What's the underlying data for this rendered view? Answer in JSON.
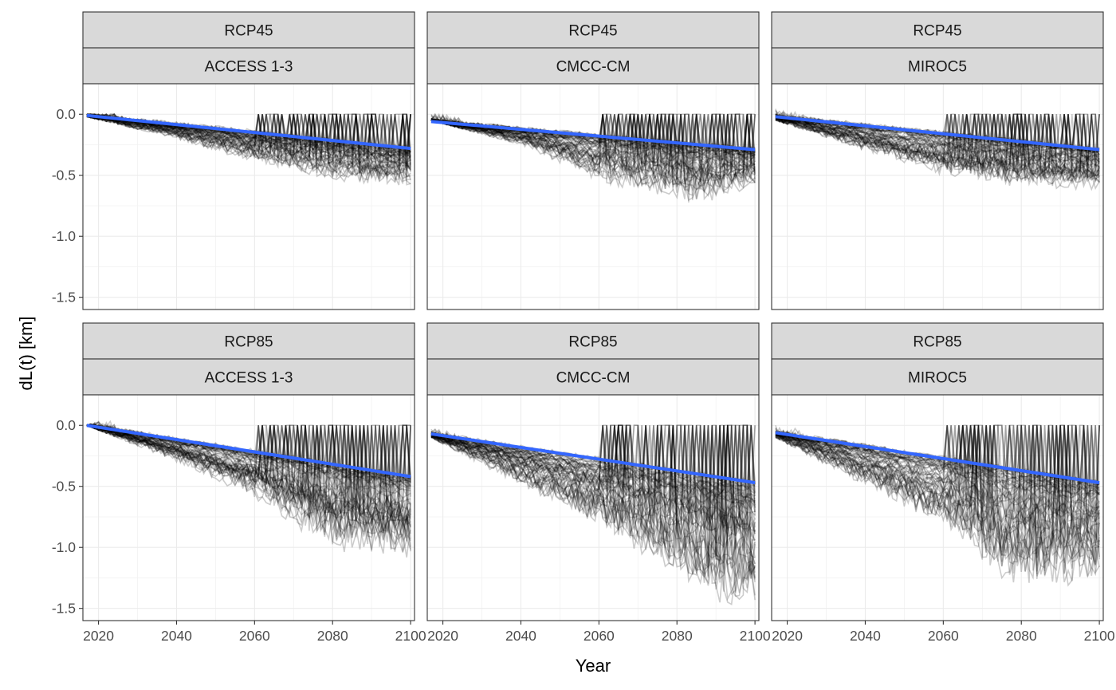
{
  "chart_data": {
    "type": "line",
    "xlabel": "Year",
    "ylabel": "dL(t) [km]",
    "xlim": [
      2016,
      2101
    ],
    "ylim": [
      -1.6,
      0.25
    ],
    "x_ticks": [
      2020,
      2040,
      2060,
      2080,
      2100
    ],
    "x_tick_labels": [
      "2020",
      "2040",
      "2060",
      "2080",
      "2100"
    ],
    "y_ticks": [
      0.0,
      -0.5,
      -1.0,
      -1.5
    ],
    "y_tick_labels": [
      "0.0",
      "-0.5",
      "-1.0",
      "-1.5"
    ],
    "grid": true,
    "ensemble_color": "#000000",
    "trend_color": "#3366ff",
    "panels": [
      {
        "scenario": "RCP45",
        "model": "ACCESS 1-3",
        "x_range": [
          2017,
          2100
        ],
        "trend": [
          [
            2017,
            -0.01
          ],
          [
            2100,
            -0.28
          ]
        ],
        "spread_min": [
          [
            2017,
            -0.02
          ],
          [
            2040,
            -0.2
          ],
          [
            2060,
            -0.4
          ],
          [
            2080,
            -0.55
          ],
          [
            2100,
            -0.6
          ]
        ],
        "spread_max": [
          [
            2017,
            0.0
          ],
          [
            2100,
            0.0
          ]
        ]
      },
      {
        "scenario": "RCP45",
        "model": "CMCC-CM",
        "x_range": [
          2017,
          2100
        ],
        "trend": [
          [
            2017,
            -0.06
          ],
          [
            2100,
            -0.29
          ]
        ],
        "spread_min": [
          [
            2017,
            -0.05
          ],
          [
            2040,
            -0.25
          ],
          [
            2060,
            -0.55
          ],
          [
            2085,
            -0.75
          ],
          [
            2100,
            -0.6
          ]
        ],
        "spread_max": [
          [
            2017,
            0.0
          ],
          [
            2043,
            0.02
          ],
          [
            2100,
            0.0
          ]
        ]
      },
      {
        "scenario": "RCP45",
        "model": "MIROC5",
        "x_range": [
          2017,
          2100
        ],
        "trend": [
          [
            2017,
            -0.02
          ],
          [
            2100,
            -0.29
          ]
        ],
        "spread_min": [
          [
            2017,
            -0.05
          ],
          [
            2040,
            -0.3
          ],
          [
            2060,
            -0.5
          ],
          [
            2080,
            -0.6
          ],
          [
            2100,
            -0.62
          ]
        ],
        "spread_max": [
          [
            2017,
            0.08
          ],
          [
            2020,
            0.18
          ],
          [
            2100,
            0.0
          ]
        ]
      },
      {
        "scenario": "RCP85",
        "model": "ACCESS 1-3",
        "x_range": [
          2017,
          2100
        ],
        "trend": [
          [
            2017,
            0.0
          ],
          [
            2100,
            -0.42
          ]
        ],
        "spread_min": [
          [
            2017,
            0.0
          ],
          [
            2040,
            -0.3
          ],
          [
            2060,
            -0.6
          ],
          [
            2080,
            -1.05
          ],
          [
            2100,
            -1.1
          ]
        ],
        "spread_max": [
          [
            2017,
            0.0
          ],
          [
            2022,
            0.05
          ],
          [
            2100,
            0.0
          ]
        ]
      },
      {
        "scenario": "RCP85",
        "model": "CMCC-CM",
        "x_range": [
          2017,
          2100
        ],
        "trend": [
          [
            2017,
            -0.07
          ],
          [
            2100,
            -0.47
          ]
        ],
        "spread_min": [
          [
            2017,
            -0.1
          ],
          [
            2040,
            -0.5
          ],
          [
            2060,
            -0.85
          ],
          [
            2080,
            -1.25
          ],
          [
            2090,
            -1.5
          ],
          [
            2100,
            -1.52
          ]
        ],
        "spread_max": [
          [
            2017,
            0.0
          ],
          [
            2100,
            0.0
          ]
        ]
      },
      {
        "scenario": "RCP85",
        "model": "MIROC5",
        "x_range": [
          2017,
          2100
        ],
        "trend": [
          [
            2017,
            -0.06
          ],
          [
            2100,
            -0.47
          ]
        ],
        "spread_min": [
          [
            2017,
            -0.1
          ],
          [
            2040,
            -0.5
          ],
          [
            2060,
            -0.85
          ],
          [
            2078,
            -1.35
          ],
          [
            2100,
            -1.3
          ]
        ],
        "spread_max": [
          [
            2017,
            0.0
          ],
          [
            2025,
            0.12
          ],
          [
            2100,
            0.0
          ]
        ]
      }
    ]
  }
}
